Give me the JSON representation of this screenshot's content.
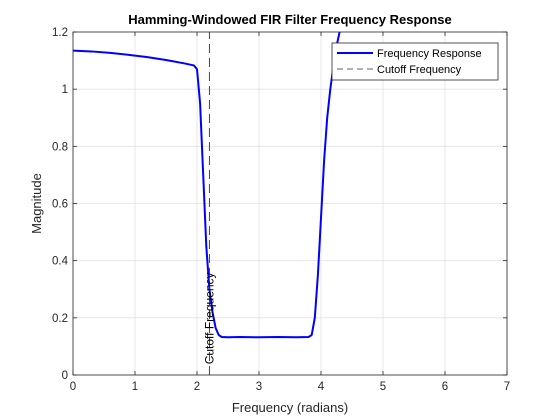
{
  "chart_data": {
    "type": "line",
    "title": "Hamming-Windowed FIR Filter Frequency Response",
    "xlabel": "Frequency (radians)",
    "ylabel": "Magnitude",
    "xlim": [
      0,
      7
    ],
    "ylim": [
      0,
      1.2
    ],
    "xticks": [
      0,
      1,
      2,
      3,
      4,
      5,
      6,
      7
    ],
    "xtick_labels": [
      "0",
      "1",
      "2",
      "3",
      "4",
      "5",
      "6",
      "7"
    ],
    "yticks": [
      0,
      0.2,
      0.4,
      0.6,
      0.8,
      1,
      1.2
    ],
    "ytick_labels": [
      "0",
      "0.2",
      "0.4",
      "0.6",
      "0.8",
      "1",
      "1.2"
    ],
    "grid": true,
    "legend_position": "top-right",
    "series": [
      {
        "name": "Frequency Response",
        "color": "#0000ff",
        "style": "solid",
        "x": [
          0,
          0.3,
          0.6,
          0.9,
          1.2,
          1.5,
          1.8,
          1.95,
          2.0,
          2.05,
          2.1,
          2.15,
          2.2,
          2.25,
          2.3,
          2.35,
          2.4,
          2.5,
          2.7,
          3.0,
          3.3,
          3.6,
          3.8,
          3.85,
          3.9,
          3.95,
          4.0,
          4.05,
          4.1,
          4.15,
          4.2,
          4.25,
          4.3
        ],
        "y": [
          1.135,
          1.132,
          1.127,
          1.12,
          1.112,
          1.102,
          1.09,
          1.083,
          1.07,
          0.95,
          0.7,
          0.45,
          0.3,
          0.22,
          0.165,
          0.14,
          0.133,
          0.132,
          0.133,
          0.132,
          0.133,
          0.132,
          0.133,
          0.14,
          0.2,
          0.35,
          0.55,
          0.75,
          0.9,
          1.0,
          1.08,
          1.15,
          1.2
        ]
      },
      {
        "name": "Cutoff Frequency",
        "color": "#333333",
        "style": "dashed",
        "x": [
          2.2,
          2.2
        ],
        "y": [
          0,
          1.2
        ]
      }
    ],
    "annotations": [
      {
        "text": "Cutoff Frequency",
        "x": 2.2,
        "y": 0.02,
        "rotation": -90
      }
    ]
  }
}
